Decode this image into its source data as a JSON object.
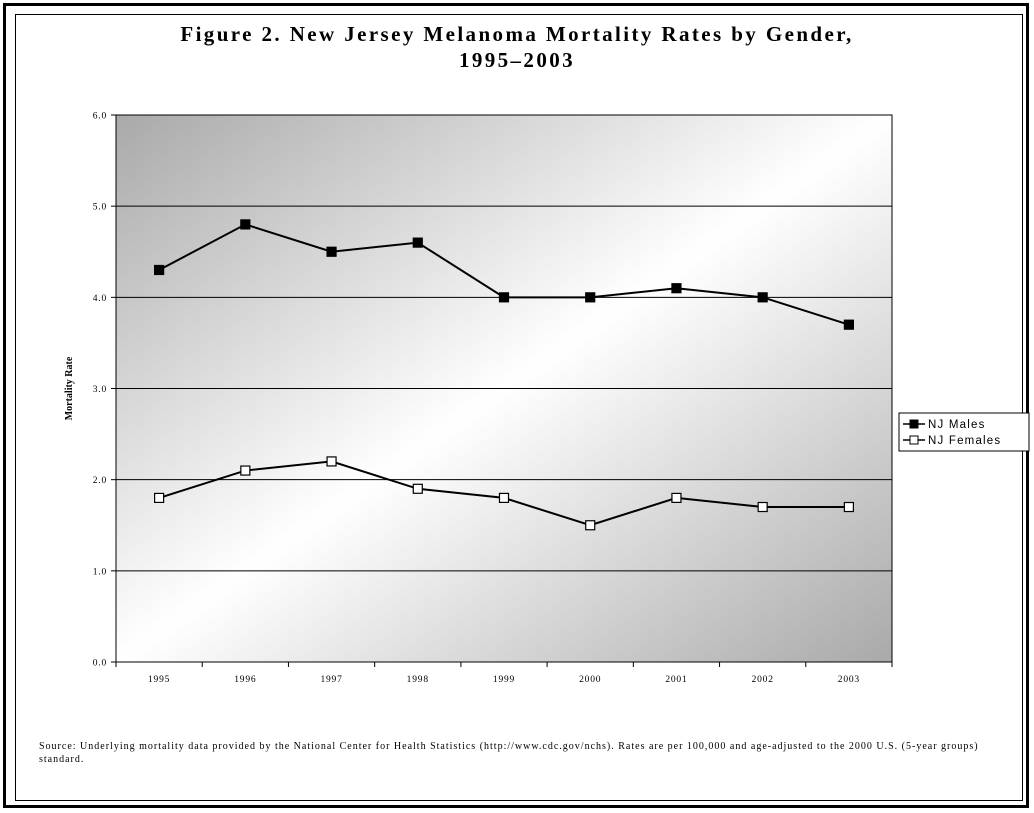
{
  "chart_data": {
    "type": "line",
    "title_line1": "Figure 2. New Jersey Melanoma Mortality Rates by Gender,",
    "title_line2": "1995–2003",
    "ylabel": "Mortality Rate",
    "xlabel": "",
    "categories": [
      "1995",
      "1996",
      "1997",
      "1998",
      "1999",
      "2000",
      "2001",
      "2002",
      "2003"
    ],
    "ylim": [
      0,
      6
    ],
    "yticks": [
      "0.0",
      "1.0",
      "2.0",
      "3.0",
      "4.0",
      "5.0",
      "6.0"
    ],
    "grid": true,
    "legend_position": "right",
    "series": [
      {
        "name": "NJ Males",
        "marker": "filled-square",
        "values": [
          4.3,
          4.8,
          4.5,
          4.6,
          4.0,
          4.0,
          4.1,
          4.0,
          3.7
        ]
      },
      {
        "name": "NJ Females",
        "marker": "open-square",
        "values": [
          1.8,
          2.1,
          2.2,
          1.9,
          1.8,
          1.5,
          1.8,
          1.7,
          1.7
        ]
      }
    ]
  },
  "source_text": "Source: Underlying mortality data provided by the National Center for Health Statistics (http://www.cdc.gov/nchs).  Rates are per 100,000 and age-adjusted to the 2000 U.S. (5-year groups) standard."
}
